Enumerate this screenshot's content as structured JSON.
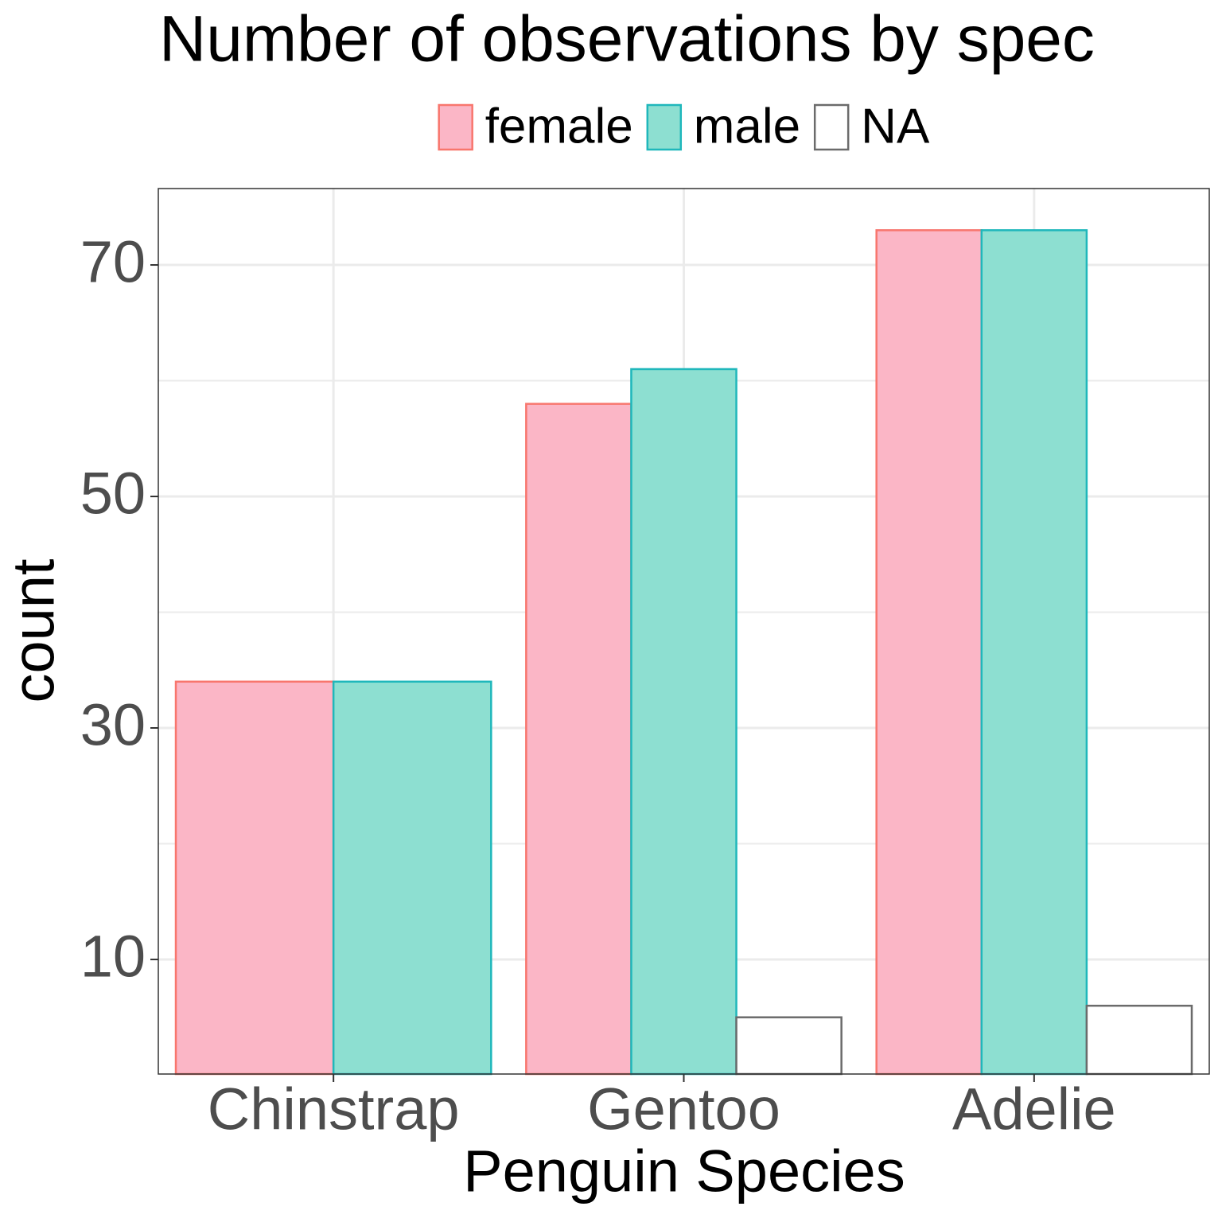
{
  "chart_data": {
    "type": "bar",
    "title": "Number of observations by spec",
    "x_label": "Penguin Species",
    "y_label": "count",
    "categories": [
      "Chinstrap",
      "Gentoo",
      "Adelie"
    ],
    "series": [
      {
        "name": "female",
        "color": "#fbb6c6",
        "stroke": "#f8766d",
        "values": [
          34,
          58,
          73
        ]
      },
      {
        "name": "male",
        "color": "#8ddfd1",
        "stroke": "#1fb7bb",
        "values": [
          34,
          61,
          73
        ]
      },
      {
        "name": "NA",
        "color": "#ffffff",
        "stroke": "#6b6b6b",
        "values": [
          null,
          5,
          6
        ]
      }
    ],
    "ylim": [
      0.1,
      76.6
    ],
    "yticks": [
      10,
      30,
      50,
      70
    ],
    "y_minor_ticks": [
      20,
      40,
      60
    ],
    "grid": true,
    "legend_position": "top"
  }
}
